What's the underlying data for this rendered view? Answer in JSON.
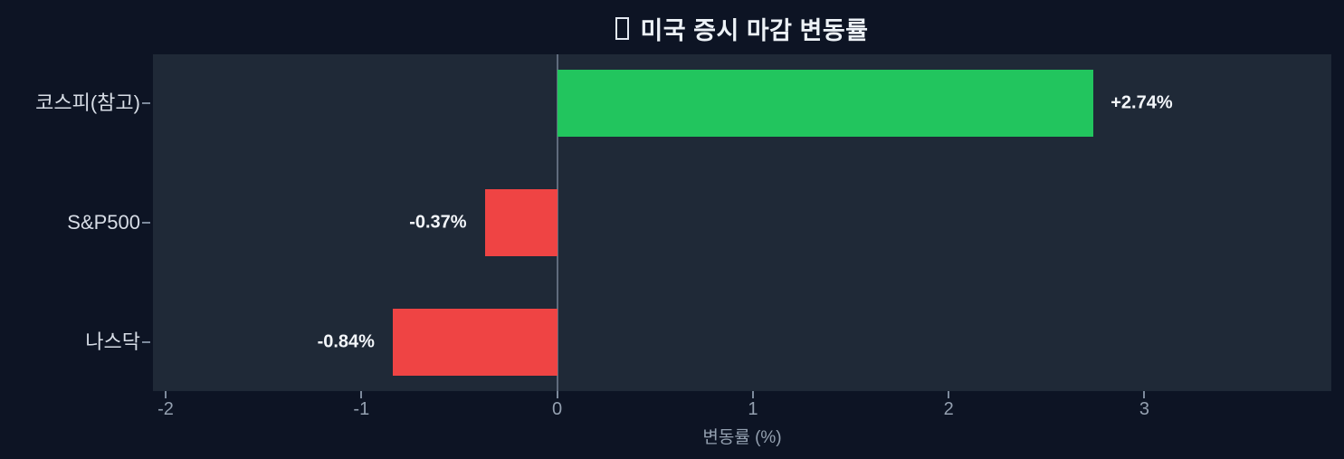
{
  "page": {
    "background": "#0d1424",
    "plot_background": "#1f2937"
  },
  "header": {
    "title_glyph": "missing-emoji-tofu-box",
    "title": "미국 증시 마감 변동률"
  },
  "chart_data": {
    "type": "bar",
    "orientation": "horizontal",
    "title": "미국 증시 마감 변동률",
    "categories": [
      "코스피(참고)",
      "S&P500",
      "나스닥"
    ],
    "values": [
      2.74,
      -0.37,
      -0.84
    ],
    "bar_labels": [
      "+2.74%",
      "-0.37%",
      "-0.84%"
    ],
    "xlabel": "변동률 (%)",
    "xticks": [
      "-2",
      "-1",
      "0",
      "1",
      "2",
      "3"
    ],
    "xtick_values": [
      -2,
      -1,
      0,
      1,
      2,
      3
    ],
    "xlim": [
      -2.065,
      3.955
    ],
    "grid": false,
    "legend": false,
    "zero_line": true,
    "colors": {
      "positive": "#22c55e",
      "negative": "#ef4444",
      "zero_line": "#94a3b8",
      "tick_text": "#94a0b0",
      "category_text": "#d7dde6",
      "value_text": "#f3f6fa",
      "title_text": "#edf2f7"
    }
  }
}
